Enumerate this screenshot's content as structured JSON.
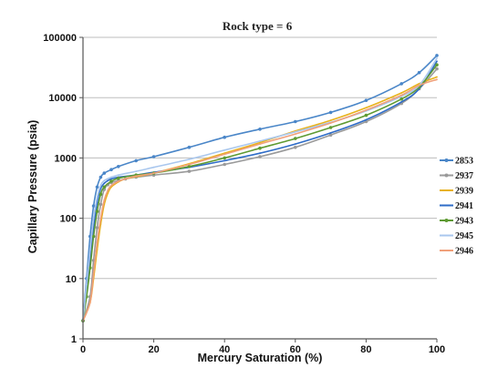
{
  "chart_data": {
    "type": "line",
    "title": "Rock type = 6",
    "xlabel": "Mercury Saturation (%)",
    "ylabel": "Capillary Pressure (psia)",
    "xlim": [
      0,
      100
    ],
    "ylim": [
      1,
      100000
    ],
    "y_scale": "log",
    "x_ticks": [
      "0",
      "20",
      "40",
      "60",
      "80",
      "100"
    ],
    "y_ticks": [
      "1",
      "10",
      "100",
      "1000",
      "10000",
      "100000"
    ],
    "grid": "horizontal",
    "legend_position": "right",
    "series": [
      {
        "name": "2853",
        "color": "#4a86c8",
        "marker": "dot",
        "x": [
          0,
          1,
          2,
          3,
          4,
          5,
          6,
          8,
          10,
          15,
          20,
          30,
          40,
          50,
          60,
          70,
          80,
          90,
          95,
          100
        ],
        "y": [
          2,
          10,
          50,
          160,
          330,
          480,
          560,
          640,
          720,
          900,
          1050,
          1500,
          2200,
          3000,
          4000,
          5700,
          9000,
          17000,
          26000,
          50000
        ]
      },
      {
        "name": "2937",
        "color": "#9a9a9a",
        "marker": "dot",
        "x": [
          0,
          2,
          3,
          4,
          5,
          6,
          7,
          8,
          10,
          12,
          15,
          20,
          30,
          40,
          50,
          60,
          70,
          80,
          90,
          95,
          100
        ],
        "y": [
          2,
          5,
          20,
          70,
          170,
          300,
          360,
          390,
          420,
          450,
          480,
          520,
          600,
          780,
          1050,
          1500,
          2400,
          4000,
          8000,
          14000,
          30000
        ]
      },
      {
        "name": "2939",
        "color": "#e8b21c",
        "marker": "none",
        "x": [
          0,
          2,
          3,
          4,
          5,
          6,
          7,
          8,
          10,
          12,
          15,
          20,
          30,
          40,
          50,
          60,
          70,
          80,
          90,
          95,
          100
        ],
        "y": [
          2,
          4,
          10,
          30,
          80,
          170,
          260,
          330,
          400,
          450,
          490,
          560,
          800,
          1200,
          1800,
          2800,
          4200,
          6800,
          12000,
          17000,
          22000
        ]
      },
      {
        "name": "2941",
        "color": "#2e6cc7",
        "marker": "none",
        "x": [
          0,
          1,
          2,
          3,
          4,
          5,
          6,
          7,
          8,
          10,
          15,
          20,
          30,
          40,
          50,
          60,
          70,
          80,
          90,
          95,
          100
        ],
        "y": [
          2,
          6,
          20,
          70,
          180,
          310,
          380,
          420,
          450,
          480,
          520,
          580,
          700,
          900,
          1200,
          1700,
          2600,
          4300,
          8500,
          14000,
          40000
        ]
      },
      {
        "name": "2943",
        "color": "#5e9a32",
        "marker": "dot",
        "x": [
          0,
          1,
          2,
          3,
          4,
          5,
          6,
          8,
          10,
          15,
          20,
          30,
          40,
          50,
          60,
          70,
          80,
          90,
          95,
          100
        ],
        "y": [
          2,
          5,
          15,
          50,
          130,
          250,
          330,
          410,
          460,
          520,
          560,
          720,
          1000,
          1450,
          2100,
          3200,
          5100,
          9500,
          15000,
          35000
        ]
      },
      {
        "name": "2945",
        "color": "#a9c7ee",
        "marker": "none",
        "x": [
          0,
          1,
          2,
          3,
          4,
          5,
          6,
          8,
          10,
          15,
          20,
          30,
          40,
          50,
          60,
          70,
          80,
          90,
          95,
          100
        ],
        "y": [
          2,
          8,
          30,
          100,
          220,
          350,
          420,
          480,
          520,
          600,
          700,
          950,
          1350,
          1900,
          2700,
          3900,
          6000,
          10500,
          16000,
          45000
        ]
      },
      {
        "name": "2946",
        "color": "#f0a07a",
        "marker": "none",
        "x": [
          0,
          2,
          3,
          4,
          5,
          6,
          7,
          8,
          10,
          12,
          15,
          20,
          30,
          40,
          50,
          60,
          70,
          80,
          90,
          95,
          100
        ],
        "y": [
          2,
          4,
          12,
          40,
          100,
          200,
          290,
          350,
          410,
          450,
          500,
          560,
          780,
          1150,
          1700,
          2500,
          3800,
          6200,
          11000,
          16000,
          20000
        ]
      }
    ]
  }
}
